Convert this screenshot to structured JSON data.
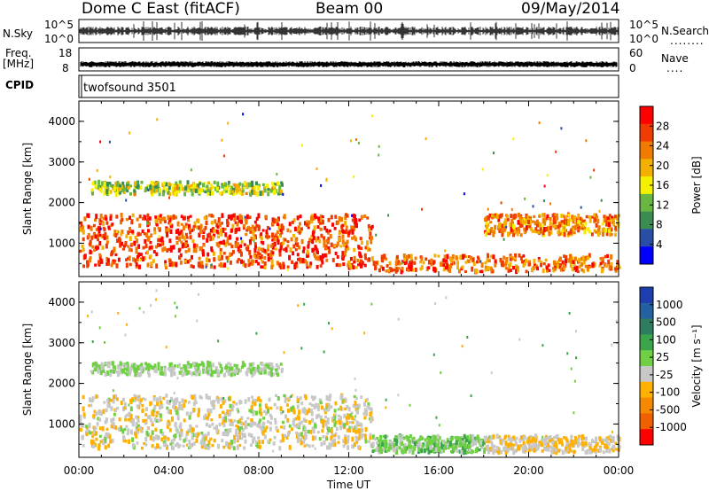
{
  "header": {
    "station": "Dome C East (fitACF)",
    "beam": "Beam 00",
    "date": "09/May/2014"
  },
  "strips": {
    "nsky": {
      "left_label": "N.Sky",
      "left_ticks": [
        "10^5",
        "10^0"
      ],
      "right_label": "N.Search",
      "right_ticks": [
        "10^5",
        "10^0"
      ],
      "right_dots": "........"
    },
    "freq": {
      "left_label_top": "Freq.",
      "left_label_bot": "[MHz]",
      "left_ticks": [
        "18",
        "8"
      ],
      "right_label": "Nave",
      "right_ticks": [
        "60",
        "0"
      ],
      "right_dots": "...."
    },
    "cpid": {
      "label": "CPID",
      "name": "twofsound 3501"
    }
  },
  "colors": {
    "power_scale": [
      "#0000ff",
      "#2a4ea8",
      "#3a8c50",
      "#69b743",
      "#f4f000",
      "#f3b000",
      "#f07b00",
      "#ef3c00",
      "#ff0000"
    ],
    "velocity_scale": [
      "#1d3eb0",
      "#2560a0",
      "#2e7d60",
      "#3aa54a",
      "#6fd044",
      "#c8c8c8",
      "#ffb000",
      "#f58a00",
      "#f06000",
      "#ff0000"
    ]
  },
  "chart_data": [
    {
      "type": "heatmap",
      "title": "",
      "xlabel": "",
      "ylabel": "Slant Range [km]",
      "x_ticks": [
        "00:00",
        "04:00",
        "08:00",
        "12:00",
        "16:00",
        "20:00",
        "00:00"
      ],
      "y_ticks": [
        "1000",
        "2000",
        "3000",
        "4000"
      ],
      "ylim": [
        180,
        4500
      ],
      "colorbar": {
        "label": "Power [dB]",
        "ticks": [
          "4",
          "8",
          "12",
          "16",
          "20",
          "24",
          "28"
        ],
        "range": [
          0,
          30
        ]
      },
      "echo_regions_approx": [
        {
          "t_start_h": 0.0,
          "t_end_h": 13.0,
          "range_km": [
            400,
            1700
          ],
          "power_db": 26
        },
        {
          "t_start_h": 0.5,
          "t_end_h": 9.0,
          "range_km": [
            2200,
            2500
          ],
          "power_db": 14
        },
        {
          "t_start_h": 13.0,
          "t_end_h": 24.0,
          "range_km": [
            300,
            700
          ],
          "power_db": 24
        },
        {
          "t_start_h": 18.0,
          "t_end_h": 24.0,
          "range_km": [
            1200,
            1700
          ],
          "power_db": 22
        }
      ]
    },
    {
      "type": "heatmap",
      "title": "",
      "xlabel": "Time UT",
      "ylabel": "Slant Range [km]",
      "x_ticks": [
        "00:00",
        "04:00",
        "08:00",
        "12:00",
        "16:00",
        "20:00",
        "00:00"
      ],
      "y_ticks": [
        "1000",
        "2000",
        "3000",
        "4000"
      ],
      "ylim": [
        180,
        4500
      ],
      "colorbar": {
        "label": "Velocity [m s⁻¹]",
        "ticks": [
          "1000",
          "500",
          "100",
          "25",
          "-25",
          "-100",
          "-500",
          "-1000"
        ]
      },
      "echo_regions_approx": [
        {
          "t_start_h": 0.0,
          "t_end_h": 13.0,
          "range_km": [
            400,
            1700
          ],
          "velocity_ms": -150
        },
        {
          "t_start_h": 0.5,
          "t_end_h": 9.0,
          "range_km": [
            2200,
            2500
          ],
          "velocity_ms": 0
        },
        {
          "t_start_h": 13.0,
          "t_end_h": 18.0,
          "range_km": [
            300,
            700
          ],
          "velocity_ms": 100
        },
        {
          "t_start_h": 18.0,
          "t_end_h": 24.0,
          "range_km": [
            300,
            700
          ],
          "velocity_ms": -200
        }
      ]
    }
  ]
}
